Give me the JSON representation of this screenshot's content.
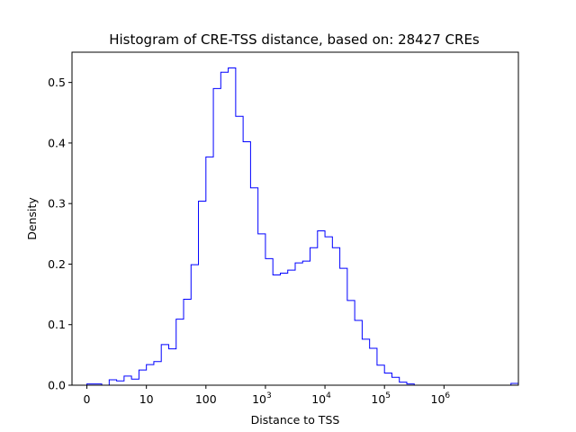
{
  "chart_data": {
    "type": "histogram",
    "title": "Histogram of CRE-TSS distance, based on: 28427 CREs",
    "xlabel": "Distance to TSS",
    "ylabel": "Density",
    "x_scale": "log10(distance+1), bins of 0.125",
    "xlim_log": [
      -0.25,
      7.25
    ],
    "ylim": [
      0,
      0.55
    ],
    "x_ticks": [
      {
        "pos": 0,
        "label": "0",
        "base": "",
        "exp": ""
      },
      {
        "pos": 1,
        "label": "10",
        "base": "",
        "exp": ""
      },
      {
        "pos": 2,
        "label": "100",
        "base": "",
        "exp": ""
      },
      {
        "pos": 3,
        "label": "",
        "base": "10",
        "exp": "3"
      },
      {
        "pos": 4,
        "label": "",
        "base": "10",
        "exp": "4"
      },
      {
        "pos": 5,
        "label": "",
        "base": "10",
        "exp": "5"
      },
      {
        "pos": 6,
        "label": "",
        "base": "10",
        "exp": "6"
      }
    ],
    "y_ticks": [
      "0.0",
      "0.1",
      "0.2",
      "0.3",
      "0.4",
      "0.5"
    ],
    "y_tick_values": [
      0.0,
      0.1,
      0.2,
      0.3,
      0.4,
      0.5
    ],
    "bin_width_log": 0.125,
    "bin_start_log": 0,
    "values": [
      0.002,
      0.002,
      0.0,
      0.009,
      0.007,
      0.015,
      0.01,
      0.025,
      0.034,
      0.039,
      0.067,
      0.06,
      0.109,
      0.142,
      0.199,
      0.304,
      0.377,
      0.49,
      0.517,
      0.524,
      0.444,
      0.402,
      0.326,
      0.25,
      0.209,
      0.182,
      0.185,
      0.19,
      0.202,
      0.205,
      0.227,
      0.255,
      0.245,
      0.227,
      0.193,
      0.14,
      0.107,
      0.076,
      0.061,
      0.033,
      0.02,
      0.013,
      0.005,
      0.002,
      0.0,
      0.0,
      0.0,
      0.0,
      0.0,
      0.0,
      0.0,
      0.0,
      0.0,
      0.0,
      0.0,
      0.0,
      0.0,
      0.003
    ],
    "line_color": "#0000ff"
  }
}
